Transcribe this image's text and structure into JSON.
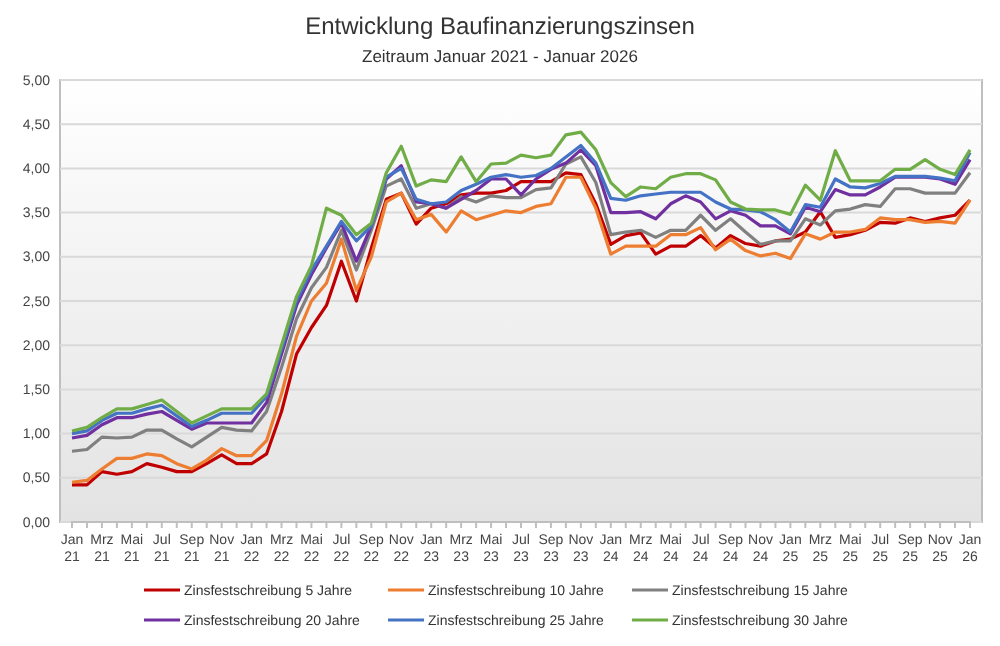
{
  "chart_data": {
    "type": "line",
    "title": "Entwicklung Baufinanzierungszinsen",
    "subtitle": "Zeitraum Januar 2021 - Januar 2026",
    "categories": [
      "Jan 21",
      null,
      "Mrz 21",
      null,
      "Mai 21",
      null,
      "Jul 21",
      null,
      "Sep 21",
      null,
      "Nov 21",
      null,
      "Jan 22",
      null,
      "Mrz 22",
      null,
      "Mai 22",
      null,
      "Jul 22",
      null,
      "Sep 22",
      null,
      "Nov 22",
      null,
      "Jan 23",
      null,
      "Mrz 23",
      null,
      "Mai 23",
      null,
      "Jul 23",
      null,
      "Sep 23",
      null,
      "Nov 23",
      null,
      "Jan 24",
      null,
      "Mrz 24",
      null,
      "Mai 24",
      null,
      "Jul 24",
      null,
      "Sep 24",
      null,
      "Nov 24",
      null,
      "Jan 25",
      null,
      "Mrz 25",
      null,
      "Mai 25",
      null,
      "Jul 25",
      null,
      "Sep 25",
      null,
      "Nov 25",
      null,
      "Jan 26"
    ],
    "series": [
      {
        "name": "Zinsfestschreibung 5 Jahre",
        "color": "#c00000",
        "values": [
          0.42,
          0.42,
          0.57,
          0.54,
          0.57,
          0.66,
          0.62,
          0.57,
          0.57,
          0.66,
          0.76,
          0.66,
          0.66,
          0.77,
          1.25,
          1.9,
          2.2,
          2.45,
          2.95,
          2.5,
          3.1,
          3.65,
          3.72,
          3.37,
          3.55,
          3.6,
          3.7,
          3.72,
          3.72,
          3.75,
          3.85,
          3.85,
          3.85,
          3.95,
          3.93,
          3.6,
          3.14,
          3.24,
          3.27,
          3.03,
          3.12,
          3.12,
          3.24,
          3.1,
          3.24,
          3.15,
          3.12,
          3.18,
          3.2,
          3.28,
          3.51,
          3.22,
          3.25,
          3.3,
          3.39,
          3.38,
          3.44,
          3.4,
          3.44,
          3.47,
          3.64
        ]
      },
      {
        "name": "Zinsfestschreibung 10 Jahre",
        "color": "#ed7d31",
        "values": [
          0.45,
          0.47,
          0.6,
          0.72,
          0.72,
          0.77,
          0.75,
          0.66,
          0.6,
          0.7,
          0.83,
          0.75,
          0.75,
          0.92,
          1.45,
          2.1,
          2.5,
          2.7,
          3.2,
          2.62,
          3.0,
          3.62,
          3.72,
          3.42,
          3.48,
          3.28,
          3.52,
          3.42,
          3.47,
          3.52,
          3.5,
          3.57,
          3.6,
          3.9,
          3.9,
          3.55,
          3.03,
          3.12,
          3.12,
          3.12,
          3.25,
          3.25,
          3.33,
          3.08,
          3.2,
          3.07,
          3.01,
          3.04,
          2.98,
          3.26,
          3.2,
          3.28,
          3.28,
          3.31,
          3.44,
          3.42,
          3.42,
          3.39,
          3.4,
          3.38,
          3.64
        ]
      },
      {
        "name": "Zinsfestschreibung 15 Jahre",
        "color": "#808080",
        "values": [
          0.8,
          0.82,
          0.96,
          0.95,
          0.96,
          1.04,
          1.04,
          0.94,
          0.85,
          0.96,
          1.07,
          1.04,
          1.03,
          1.25,
          1.75,
          2.3,
          2.65,
          2.88,
          3.3,
          2.85,
          3.3,
          3.8,
          3.88,
          3.55,
          3.6,
          3.55,
          3.68,
          3.62,
          3.69,
          3.67,
          3.67,
          3.76,
          3.78,
          4.05,
          4.13,
          3.84,
          3.25,
          3.28,
          3.3,
          3.22,
          3.3,
          3.3,
          3.47,
          3.3,
          3.43,
          3.28,
          3.14,
          3.18,
          3.18,
          3.43,
          3.36,
          3.52,
          3.54,
          3.59,
          3.57,
          3.77,
          3.77,
          3.72,
          3.72,
          3.72,
          3.95
        ]
      },
      {
        "name": "Zinsfestschreibung 20 Jahre",
        "color": "#7030a0",
        "values": [
          0.95,
          0.98,
          1.1,
          1.18,
          1.18,
          1.22,
          1.25,
          1.15,
          1.05,
          1.12,
          1.12,
          1.12,
          1.12,
          1.35,
          1.9,
          2.45,
          2.8,
          3.1,
          3.38,
          2.95,
          3.35,
          3.88,
          4.03,
          3.62,
          3.6,
          3.55,
          3.65,
          3.75,
          3.88,
          3.88,
          3.7,
          3.88,
          3.99,
          4.06,
          4.21,
          4.03,
          3.5,
          3.5,
          3.51,
          3.43,
          3.6,
          3.69,
          3.62,
          3.43,
          3.52,
          3.47,
          3.35,
          3.35,
          3.26,
          3.56,
          3.51,
          3.76,
          3.7,
          3.7,
          3.79,
          3.9,
          3.9,
          3.9,
          3.88,
          3.82,
          4.1
        ]
      },
      {
        "name": "Zinsfestschreibung 25 Jahre",
        "color": "#4472c4",
        "values": [
          1.0,
          1.03,
          1.15,
          1.23,
          1.23,
          1.28,
          1.32,
          1.2,
          1.08,
          1.15,
          1.23,
          1.23,
          1.23,
          1.42,
          1.95,
          2.5,
          2.85,
          3.12,
          3.4,
          3.18,
          3.35,
          3.9,
          4.0,
          3.65,
          3.6,
          3.62,
          3.75,
          3.82,
          3.9,
          3.93,
          3.9,
          3.92,
          4.0,
          4.13,
          4.26,
          4.06,
          3.66,
          3.64,
          3.69,
          3.71,
          3.73,
          3.73,
          3.73,
          3.62,
          3.54,
          3.53,
          3.51,
          3.42,
          3.28,
          3.59,
          3.56,
          3.88,
          3.79,
          3.78,
          3.83,
          3.91,
          3.91,
          3.91,
          3.89,
          3.86,
          4.18
        ]
      },
      {
        "name": "Zinsfestschreibung 30 Jahre",
        "color": "#70ad47",
        "values": [
          1.03,
          1.07,
          1.18,
          1.28,
          1.28,
          1.33,
          1.38,
          1.25,
          1.12,
          1.2,
          1.28,
          1.28,
          1.28,
          1.45,
          2.0,
          2.55,
          2.9,
          3.55,
          3.47,
          3.25,
          3.38,
          3.95,
          4.25,
          3.8,
          3.87,
          3.85,
          4.13,
          3.85,
          4.05,
          4.06,
          4.15,
          4.12,
          4.15,
          4.38,
          4.41,
          4.21,
          3.84,
          3.68,
          3.79,
          3.77,
          3.9,
          3.94,
          3.94,
          3.87,
          3.62,
          3.54,
          3.53,
          3.53,
          3.48,
          3.81,
          3.64,
          4.2,
          3.86,
          3.86,
          3.86,
          3.99,
          3.99,
          4.1,
          3.99,
          3.93,
          4.21
        ]
      }
    ],
    "ylim": [
      0,
      5
    ],
    "yticks": [
      {
        "value": 0,
        "label": "0,00"
      },
      {
        "value": 0.5,
        "label": "0,50"
      },
      {
        "value": 1,
        "label": "1,00"
      },
      {
        "value": 1.5,
        "label": "1,50"
      },
      {
        "value": 2,
        "label": "2,00"
      },
      {
        "value": 2.5,
        "label": "2,50"
      },
      {
        "value": 3,
        "label": "3,00"
      },
      {
        "value": 3.5,
        "label": "3,50"
      },
      {
        "value": 4,
        "label": "4,00"
      },
      {
        "value": 4.5,
        "label": "4,50"
      },
      {
        "value": 5,
        "label": "5,00"
      }
    ],
    "grid": "y",
    "legend": "bottom",
    "marker": "none",
    "line_style": "solid"
  }
}
